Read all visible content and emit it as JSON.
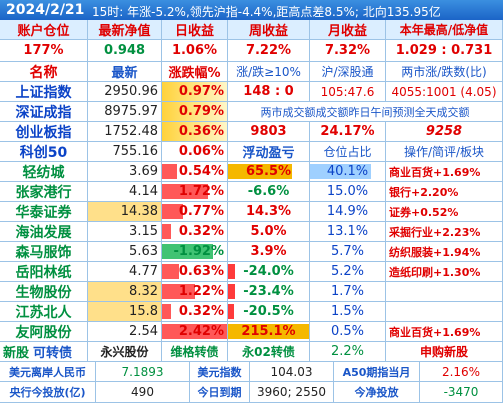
{
  "header": {
    "title": "2024/2/21",
    "info": "15时: 年涨-5.2%,领先沪指-4.4%,距高点差8.5%; 北向135.95亿"
  },
  "account": {
    "labels": [
      "账户仓位",
      "最新净值",
      "日收益",
      "周收益",
      "月收益",
      "本年最高/低净值"
    ],
    "values": [
      "177%",
      "0.948",
      "1.06%",
      "7.22%",
      "7.32%",
      "1.029 : 0.731"
    ]
  },
  "index_header": [
    "名称",
    "最新",
    "涨跌幅%",
    "涨/跌≥10%",
    "沪/深股通",
    "两市涨/跌数(比)"
  ],
  "indices": [
    {
      "name": "上证指数",
      "price": "2950.96",
      "change": "0.97%",
      "c4": "148 : 0",
      "c5": "105:47.6",
      "c6": "4055:1001 (4.05)"
    },
    {
      "name": "深证成指",
      "price": "8975.97",
      "change": "0.79%",
      "merged": "两市成交额成交额昨日午间预测全天成交额"
    },
    {
      "name": "创业板指",
      "price": "1752.48",
      "change": "0.36%",
      "c4": "9803",
      "c5": "24.17%",
      "c6": "9258"
    }
  ],
  "holdings_header": {
    "name": "科创50",
    "price": "755.16",
    "change": "0.06%",
    "c4": "浮动盈亏",
    "c5": "仓位占比",
    "c6": "操作/简评/板块"
  },
  "holdings": [
    {
      "name": "轻纺城",
      "price": "3.69",
      "change": "0.54%",
      "pnl": "65.5%",
      "weight": "40.1%",
      "note": "商业百货+1.69%",
      "chg_bar": 0.22,
      "pnl_bar": 0.78,
      "pnl_neg": false,
      "weight_bar": 0.8,
      "chg_neg": false
    },
    {
      "name": "张家港行",
      "price": "4.14",
      "change": "1.72%",
      "pnl": "-6.6%",
      "weight": "15.0%",
      "note": "银行+2.20%",
      "chg_bar": 0.7,
      "pnl_bar": 0.0,
      "pnl_neg": true,
      "weight_bar": 0.0,
      "chg_neg": false
    },
    {
      "name": "华泰证券",
      "price": "14.38",
      "change": "0.77%",
      "pnl": "14.3%",
      "weight": "14.9%",
      "note": "证券+0.52%",
      "chg_bar": 0.32,
      "pnl_bar": 0.0,
      "pnl_neg": false,
      "weight_bar": 0.0,
      "chg_neg": false
    },
    {
      "name": "海油发展",
      "price": "3.15",
      "change": "0.32%",
      "pnl": "5.0%",
      "weight": "13.1%",
      "note": "采掘行业+2.23%",
      "chg_bar": 0.13,
      "pnl_bar": 0.0,
      "pnl_neg": false,
      "weight_bar": 0.0,
      "chg_neg": false
    },
    {
      "name": "森马服饰",
      "price": "5.63",
      "change": "-1.92%",
      "pnl": "3.9%",
      "weight": "5.7%",
      "note": "纺织服装+1.94%",
      "chg_bar": 0.78,
      "pnl_bar": 0.0,
      "pnl_neg": false,
      "weight_bar": 0.0,
      "chg_neg": true
    },
    {
      "name": "岳阳林纸",
      "price": "4.77",
      "change": "0.63%",
      "pnl": "-24.0%",
      "weight": "5.2%",
      "note": "造纸印刷+1.30%",
      "chg_bar": 0.26,
      "pnl_bar": 0.08,
      "pnl_neg": true,
      "weight_bar": 0.0,
      "chg_neg": false
    },
    {
      "name": "生物股份",
      "price": "8.32",
      "change": "1.22%",
      "pnl": "-23.4%",
      "weight": "1.7%",
      "note": "",
      "chg_bar": 0.5,
      "pnl_bar": 0.08,
      "pnl_neg": true,
      "weight_bar": 0.0,
      "chg_neg": false
    },
    {
      "name": "江苏北人",
      "price": "15.8",
      "change": "0.32%",
      "pnl": "-20.5%",
      "weight": "1.5%",
      "note": "",
      "chg_bar": 0.13,
      "pnl_bar": 0.07,
      "pnl_neg": true,
      "weight_bar": 0.0,
      "chg_neg": false
    },
    {
      "name": "友阿股份",
      "price": "2.54",
      "change": "2.42%",
      "pnl": "215.1%",
      "weight": "0.5%",
      "note": "商业百货+1.69%",
      "chg_bar": 1.0,
      "pnl_bar": 1.0,
      "pnl_neg": false,
      "weight_bar": 0.0,
      "chg_neg": false
    }
  ],
  "newshare": {
    "c1": "新股",
    "c1b": "可转债",
    "c2": "永兴股份",
    "c3": "维格转债",
    "c4": "永02转债",
    "c5": "2.2%",
    "c6": "申购新股"
  },
  "footer1": {
    "k1": "美元离岸人民币",
    "v1": "7.1893",
    "k2": "美元指数",
    "v2": "104.03",
    "k3": "A50期指当月",
    "v3": "2.16%"
  },
  "footer2": {
    "k1": "央行今投放(亿)",
    "v1": "490",
    "k2": "今日到期",
    "v2": "3960; 2550",
    "k3": "今净投放",
    "v3": "-3470"
  },
  "colors": {
    "up": "#e00000",
    "down": "#009040",
    "header": "#1b64c7",
    "bar_up": "#ff3b3b",
    "bar_down": "#1fb85a",
    "bar_gold": "#f5b800"
  }
}
